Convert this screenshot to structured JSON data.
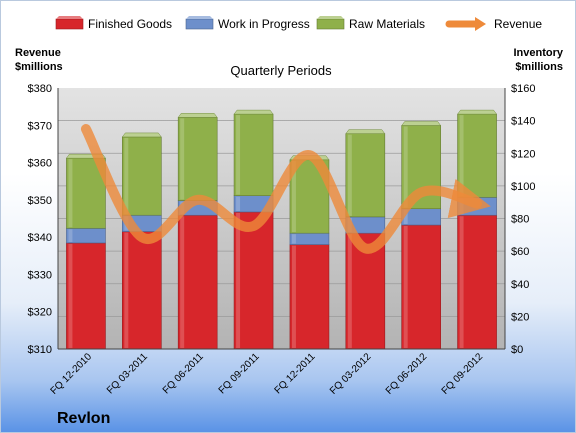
{
  "company": "Revlon",
  "chart_data": {
    "type": "bar",
    "title": "Quarterly Periods",
    "stacked": true,
    "categories": [
      "FQ 12-2010",
      "FQ 03-2011",
      "FQ 06-2011",
      "FQ 09-2011",
      "FQ 12-2011",
      "FQ 03-2012",
      "FQ 06-2012",
      "FQ 09-2012"
    ],
    "left_axis_label": [
      "Revenue",
      "$millions"
    ],
    "right_axis_label": [
      "Inventory",
      "$millions"
    ],
    "left_ylim": [
      310,
      380
    ],
    "left_ticks": [
      "$310",
      "$320",
      "$330",
      "$340",
      "$350",
      "$360",
      "$370",
      "$380"
    ],
    "right_ylim": [
      0,
      160
    ],
    "right_ticks": [
      "$0",
      "$20",
      "$40",
      "$60",
      "$80",
      "$100",
      "$120",
      "$140",
      "$160"
    ],
    "grid": true,
    "legend_position": "top",
    "series": [
      {
        "name": "Finished Goods",
        "axis": "right",
        "color": "#d7262b",
        "values": [
          65,
          72,
          82,
          84,
          64,
          71,
          76,
          82
        ]
      },
      {
        "name": "Work in Progress",
        "axis": "right",
        "color": "#6d8fcb",
        "values": [
          9,
          10,
          9,
          10,
          7,
          10,
          10,
          11
        ]
      },
      {
        "name": "Raw Materials",
        "axis": "right",
        "color": "#8fb04a",
        "values": [
          43,
          48,
          51,
          50,
          45,
          51,
          51,
          51
        ]
      },
      {
        "name": "Revenue",
        "axis": "left",
        "type": "line",
        "color": "#ee8a3a",
        "values": [
          369,
          340,
          350,
          343,
          362,
          337,
          352,
          349
        ]
      }
    ]
  }
}
